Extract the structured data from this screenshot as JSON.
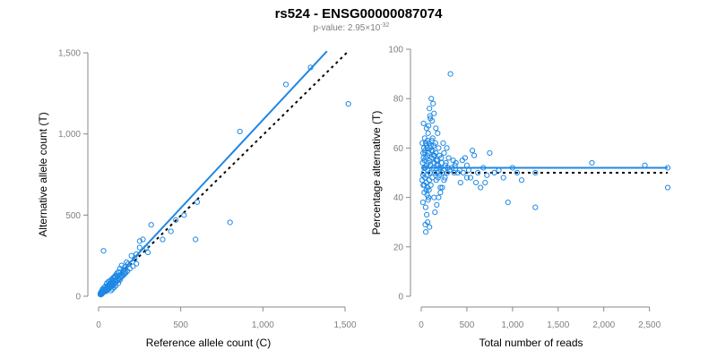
{
  "figure": {
    "title": "rs524 - ENSG00000087074",
    "subtitle_prefix": "p-value: 2.95×10",
    "subtitle_exponent": "-32"
  },
  "chart_data": [
    {
      "type": "scatter",
      "name": "allele-counts",
      "xlabel": "Reference allele count (C)",
      "ylabel": "Alternative allele count (T)",
      "xlim": [
        0,
        1500
      ],
      "ylim": [
        0,
        1500
      ],
      "xticks": [
        0,
        500,
        1000,
        1500
      ],
      "xtick_labels": [
        "0",
        "500",
        "1,000",
        "1,500"
      ],
      "yticks": [
        0,
        500,
        1000,
        1500
      ],
      "ytick_labels": [
        "0",
        "500",
        "1,000",
        "1,500"
      ],
      "colors": {
        "points": "#1e88e5",
        "fit": "#1e88e5",
        "reference": "#000000"
      },
      "fit_line": {
        "x": [
          0,
          1390
        ],
        "y": [
          0,
          1510
        ]
      },
      "reference_line": {
        "x": [
          0,
          1520
        ],
        "y": [
          0,
          1510
        ]
      },
      "points": [
        [
          1520,
          1185
        ],
        [
          1290,
          1410
        ],
        [
          1140,
          1305
        ],
        [
          860,
          1015
        ],
        [
          800,
          455
        ],
        [
          590,
          350
        ],
        [
          600,
          580
        ],
        [
          520,
          500
        ],
        [
          470,
          470
        ],
        [
          440,
          400
        ],
        [
          390,
          350
        ],
        [
          320,
          440
        ],
        [
          300,
          270
        ],
        [
          290,
          300
        ],
        [
          270,
          350
        ],
        [
          250,
          340
        ],
        [
          250,
          300
        ],
        [
          230,
          260
        ],
        [
          200,
          250
        ],
        [
          220,
          230
        ],
        [
          180,
          200
        ],
        [
          170,
          210
        ],
        [
          160,
          180
        ],
        [
          150,
          160
        ],
        [
          140,
          190
        ],
        [
          130,
          170
        ],
        [
          120,
          150
        ],
        [
          110,
          130
        ],
        [
          100,
          120
        ],
        [
          95,
          110
        ],
        [
          90,
          100
        ],
        [
          85,
          95
        ],
        [
          80,
          90
        ],
        [
          75,
          85
        ],
        [
          70,
          80
        ],
        [
          65,
          75
        ],
        [
          60,
          70
        ],
        [
          55,
          60
        ],
        [
          50,
          55
        ],
        [
          45,
          50
        ],
        [
          40,
          45
        ],
        [
          35,
          40
        ],
        [
          30,
          35
        ],
        [
          25,
          30
        ],
        [
          20,
          25
        ],
        [
          15,
          20
        ],
        [
          10,
          15
        ],
        [
          30,
          280
        ],
        [
          100,
          90
        ],
        [
          90,
          70
        ],
        [
          80,
          60
        ],
        [
          70,
          55
        ],
        [
          60,
          45
        ],
        [
          50,
          40
        ],
        [
          40,
          30
        ],
        [
          30,
          25
        ],
        [
          20,
          15
        ],
        [
          120,
          110
        ],
        [
          140,
          120
        ],
        [
          160,
          140
        ],
        [
          130,
          100
        ],
        [
          150,
          130
        ],
        [
          110,
          100
        ],
        [
          60,
          90
        ],
        [
          50,
          80
        ],
        [
          40,
          60
        ],
        [
          35,
          55
        ],
        [
          25,
          45
        ],
        [
          20,
          35
        ],
        [
          15,
          25
        ],
        [
          45,
          30
        ],
        [
          55,
          40
        ],
        [
          65,
          50
        ],
        [
          75,
          60
        ],
        [
          85,
          70
        ],
        [
          95,
          80
        ],
        [
          105,
          90
        ],
        [
          115,
          95
        ],
        [
          125,
          105
        ],
        [
          135,
          115
        ],
        [
          145,
          125
        ],
        [
          155,
          135
        ],
        [
          165,
          145
        ],
        [
          175,
          155
        ],
        [
          190,
          170
        ],
        [
          210,
          185
        ],
        [
          230,
          200
        ],
        [
          70,
          95
        ],
        [
          80,
          105
        ],
        [
          90,
          115
        ],
        [
          100,
          125
        ],
        [
          110,
          140
        ],
        [
          75,
          35
        ],
        [
          85,
          45
        ],
        [
          95,
          55
        ],
        [
          105,
          65
        ],
        [
          120,
          80
        ],
        [
          12,
          10
        ],
        [
          18,
          12
        ],
        [
          22,
          18
        ],
        [
          28,
          22
        ],
        [
          33,
          28
        ],
        [
          38,
          32
        ],
        [
          42,
          36
        ],
        [
          48,
          42
        ],
        [
          52,
          46
        ],
        [
          58,
          52
        ],
        [
          62,
          56
        ],
        [
          68,
          62
        ],
        [
          72,
          66
        ],
        [
          78,
          72
        ],
        [
          82,
          76
        ],
        [
          88,
          82
        ],
        [
          92,
          86
        ],
        [
          98,
          92
        ]
      ]
    },
    {
      "type": "scatter",
      "name": "percentage-alternative",
      "xlabel": "Total number of reads",
      "ylabel": "Percentage alternative (T)",
      "xlim": [
        0,
        2700
      ],
      "ylim": [
        0,
        100
      ],
      "xticks": [
        0,
        500,
        1000,
        1500,
        2000,
        2500
      ],
      "xtick_labels": [
        "0",
        "500",
        "1,000",
        "1,500",
        "2,000",
        "2,500"
      ],
      "yticks": [
        0,
        20,
        40,
        60,
        80,
        100
      ],
      "ytick_labels": [
        "0",
        "20",
        "40",
        "60",
        "80",
        "100"
      ],
      "colors": {
        "points": "#1e88e5",
        "fit": "#1e88e5",
        "reference": "#000000"
      },
      "fit_line": {
        "x": [
          0,
          2700
        ],
        "y": [
          52,
          52
        ]
      },
      "reference_line": {
        "x": [
          0,
          2700
        ],
        "y": [
          50,
          50
        ]
      },
      "points": [
        [
          2700,
          44
        ],
        [
          2700,
          52
        ],
        [
          2450,
          53
        ],
        [
          1870,
          54
        ],
        [
          1250,
          36
        ],
        [
          1250,
          50
        ],
        [
          1100,
          47
        ],
        [
          1050,
          50
        ],
        [
          950,
          38
        ],
        [
          900,
          48
        ],
        [
          800,
          50
        ],
        [
          750,
          58
        ],
        [
          700,
          46
        ],
        [
          650,
          44
        ],
        [
          600,
          46
        ],
        [
          580,
          57
        ],
        [
          560,
          59
        ],
        [
          540,
          48
        ],
        [
          500,
          48
        ],
        [
          480,
          56
        ],
        [
          450,
          55
        ],
        [
          430,
          46
        ],
        [
          400,
          50
        ],
        [
          370,
          53
        ],
        [
          350,
          55
        ],
        [
          320,
          90
        ],
        [
          300,
          56
        ],
        [
          290,
          52
        ],
        [
          280,
          60
        ],
        [
          270,
          54
        ],
        [
          260,
          48
        ],
        [
          250,
          58
        ],
        [
          240,
          62
        ],
        [
          230,
          50
        ],
        [
          220,
          56
        ],
        [
          210,
          44
        ],
        [
          200,
          57
        ],
        [
          195,
          52
        ],
        [
          190,
          60
        ],
        [
          185,
          48
        ],
        [
          180,
          66
        ],
        [
          175,
          55
        ],
        [
          170,
          53
        ],
        [
          165,
          47
        ],
        [
          160,
          58
        ],
        [
          155,
          62
        ],
        [
          150,
          50
        ],
        [
          145,
          54
        ],
        [
          140,
          40
        ],
        [
          135,
          57
        ],
        [
          130,
          52
        ],
        [
          125,
          64
        ],
        [
          120,
          48
        ],
        [
          115,
          56
        ],
        [
          110,
          59
        ],
        [
          105,
          45
        ],
        [
          100,
          53
        ],
        [
          100,
          72
        ],
        [
          98,
          60
        ],
        [
          95,
          50
        ],
        [
          92,
          55
        ],
        [
          90,
          76
        ],
        [
          88,
          47
        ],
        [
          85,
          62
        ],
        [
          82,
          58
        ],
        [
          80,
          40
        ],
        [
          78,
          54
        ],
        [
          75,
          66
        ],
        [
          72,
          51
        ],
        [
          70,
          44
        ],
        [
          68,
          57
        ],
        [
          65,
          60
        ],
        [
          62,
          49
        ],
        [
          60,
          53
        ],
        [
          58,
          68
        ],
        [
          55,
          46
        ],
        [
          52,
          56
        ],
        [
          50,
          62
        ],
        [
          48,
          36
        ],
        [
          45,
          52
        ],
        [
          42,
          58
        ],
        [
          40,
          48
        ],
        [
          38,
          64
        ],
        [
          35,
          55
        ],
        [
          33,
          42
        ],
        [
          30,
          60
        ],
        [
          28,
          50
        ],
        [
          25,
          70
        ],
        [
          22,
          45
        ],
        [
          20,
          58
        ],
        [
          18,
          38
        ],
        [
          15,
          54
        ],
        [
          12,
          62
        ],
        [
          10,
          47
        ],
        [
          130,
          78
        ],
        [
          110,
          80
        ],
        [
          90,
          28
        ],
        [
          70,
          30
        ],
        [
          60,
          33
        ],
        [
          50,
          26
        ],
        [
          45,
          29
        ],
        [
          150,
          34
        ],
        [
          170,
          37
        ],
        [
          190,
          40
        ],
        [
          210,
          42
        ],
        [
          230,
          44
        ],
        [
          250,
          47
        ],
        [
          80,
          69
        ],
        [
          95,
          73
        ],
        [
          120,
          71
        ],
        [
          140,
          74
        ],
        [
          160,
          68
        ],
        [
          60,
          61
        ],
        [
          70,
          63
        ],
        [
          40,
          59
        ],
        [
          30,
          52
        ],
        [
          20,
          49
        ],
        [
          25,
          56
        ],
        [
          35,
          45
        ],
        [
          55,
          43
        ],
        [
          65,
          41
        ],
        [
          75,
          39
        ],
        [
          85,
          43
        ],
        [
          105,
          61
        ],
        [
          115,
          63
        ],
        [
          125,
          59
        ],
        [
          135,
          61
        ],
        [
          145,
          57
        ],
        [
          165,
          55
        ],
        [
          175,
          50
        ],
        [
          185,
          53
        ],
        [
          200,
          49
        ],
        [
          215,
          52
        ],
        [
          225,
          54
        ],
        [
          245,
          51
        ],
        [
          265,
          53
        ],
        [
          285,
          50
        ],
        [
          310,
          51
        ],
        [
          340,
          52
        ],
        [
          360,
          50
        ],
        [
          380,
          54
        ],
        [
          420,
          51
        ],
        [
          460,
          50
        ],
        [
          500,
          53
        ],
        [
          520,
          51
        ],
        [
          620,
          50
        ],
        [
          680,
          52
        ],
        [
          720,
          49
        ],
        [
          850,
          51
        ],
        [
          1000,
          52
        ]
      ]
    }
  ]
}
